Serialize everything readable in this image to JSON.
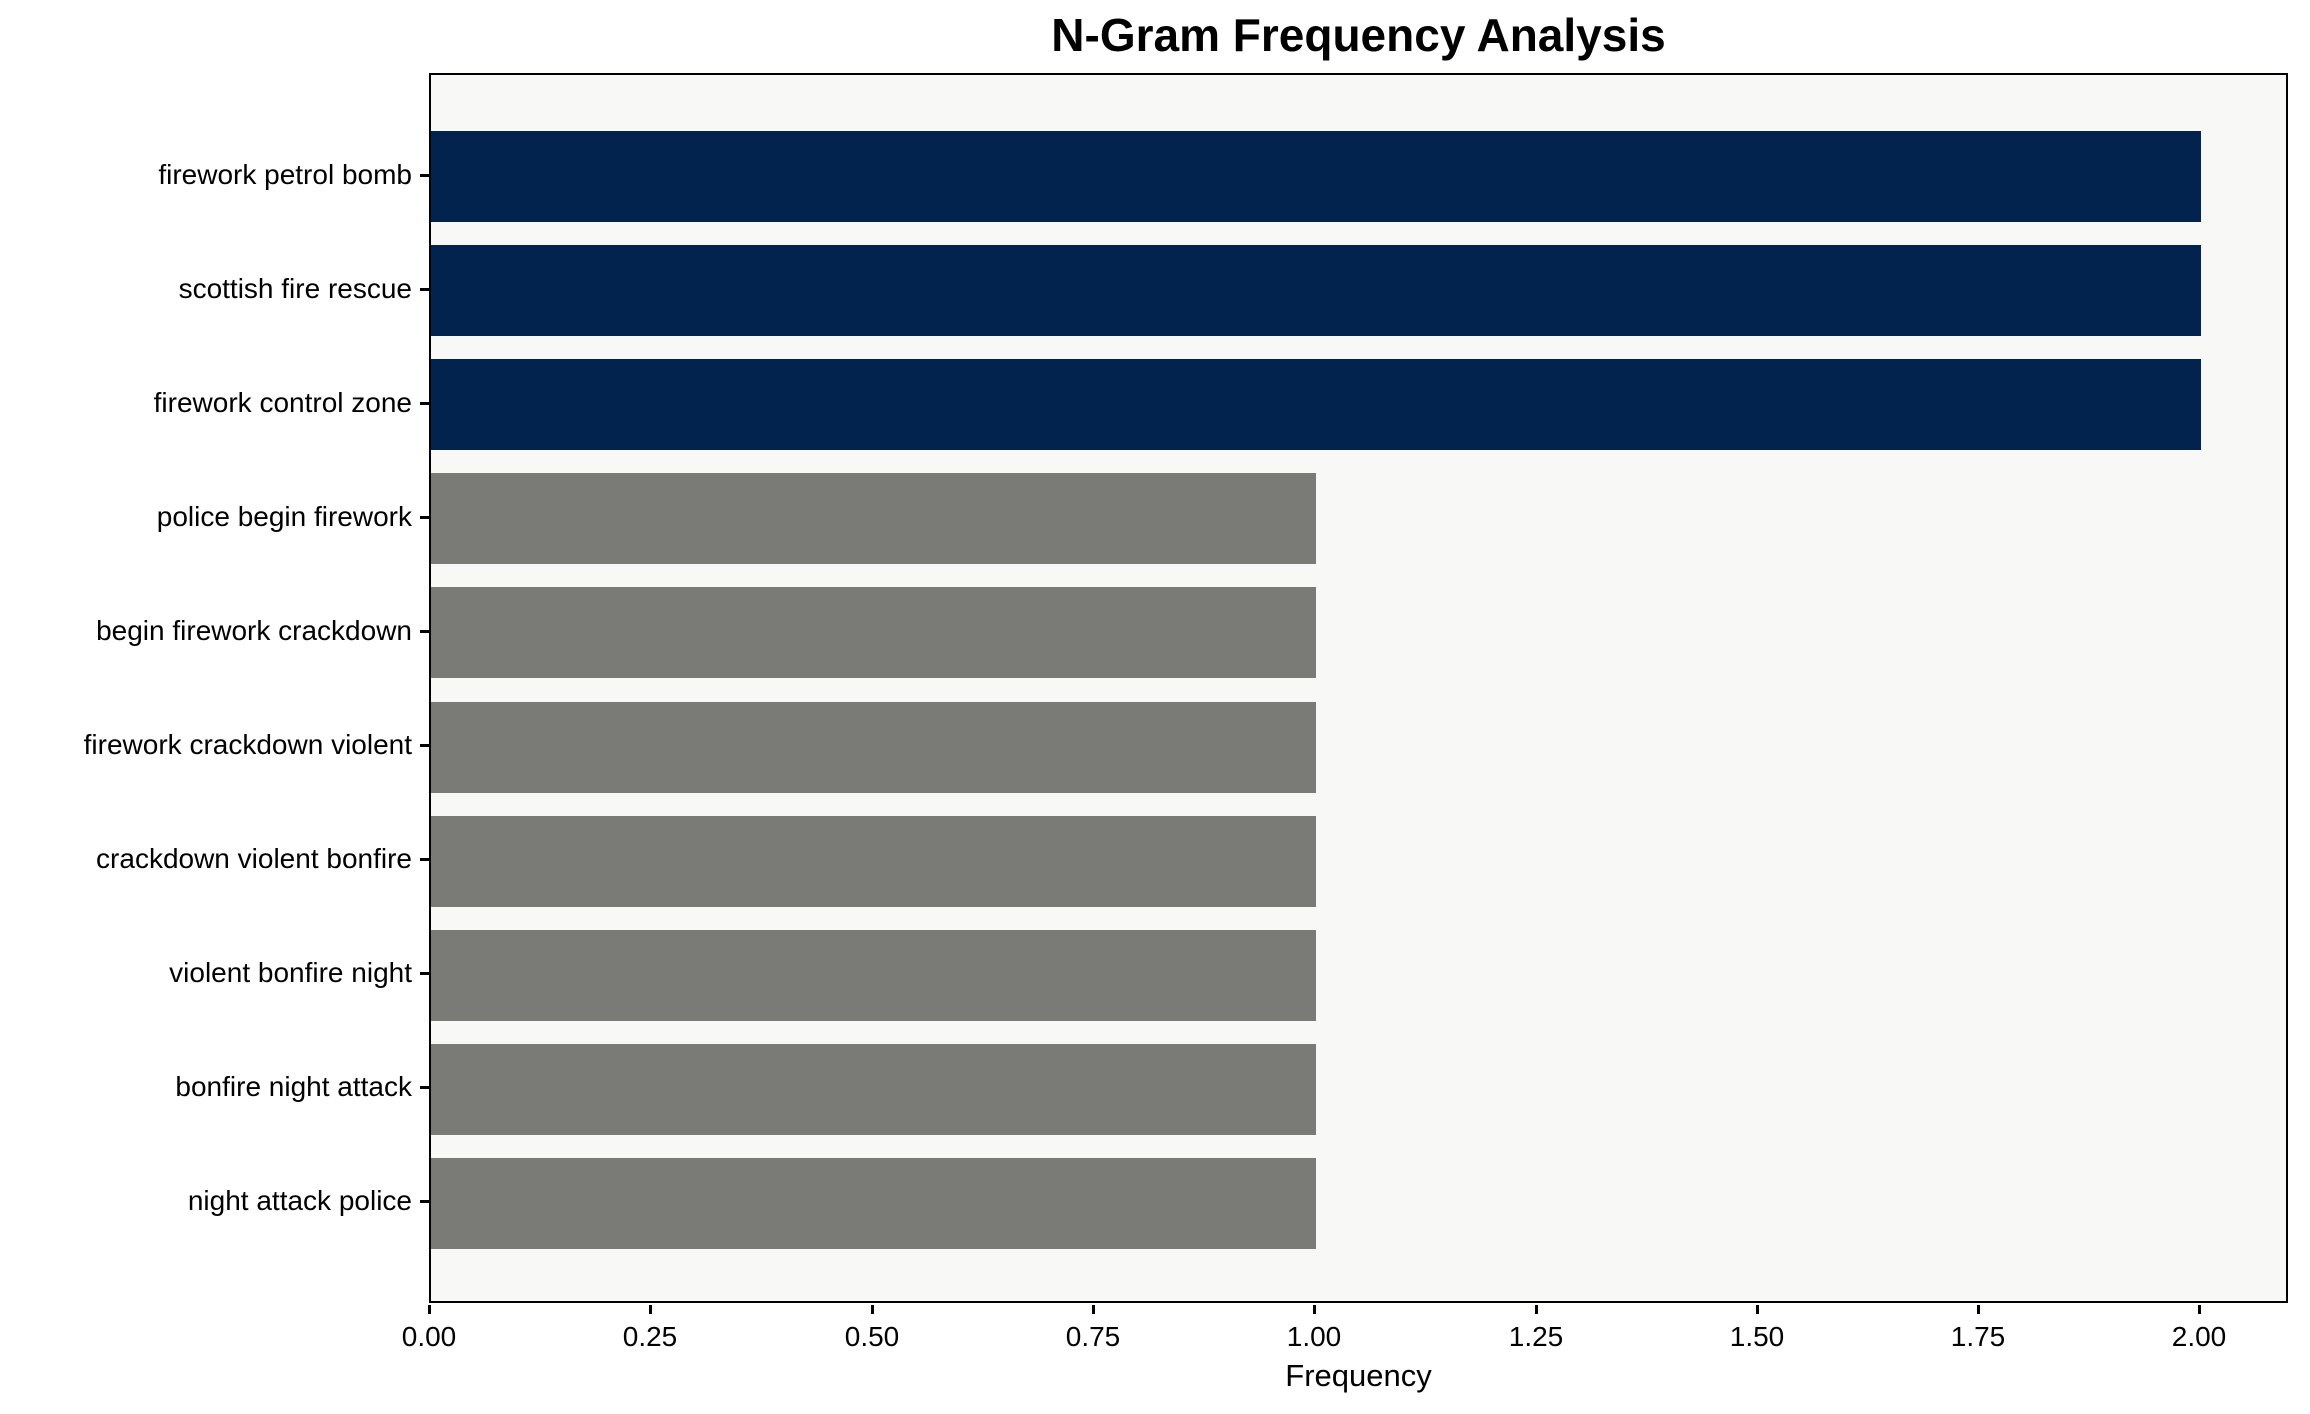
{
  "chart_data": {
    "type": "bar",
    "orientation": "horizontal",
    "title": "N-Gram Frequency Analysis",
    "xlabel": "Frequency",
    "ylabel": "",
    "categories": [
      "firework petrol bomb",
      "scottish fire rescue",
      "firework control zone",
      "police begin firework",
      "begin firework crackdown",
      "firework crackdown violent",
      "crackdown violent bonfire",
      "violent bonfire night",
      "bonfire night attack",
      "night attack police"
    ],
    "values": [
      2,
      2,
      2,
      1,
      1,
      1,
      1,
      1,
      1,
      1
    ],
    "xlim": [
      0,
      2.1
    ],
    "xtick_values": [
      0,
      0.25,
      0.5,
      0.75,
      1.0,
      1.25,
      1.5,
      1.75,
      2.0
    ],
    "xtick_labels": [
      "0.00",
      "0.25",
      "0.50",
      "0.75",
      "1.00",
      "1.25",
      "1.50",
      "1.75",
      "2.00"
    ],
    "grid": false,
    "legend_position": "none",
    "colors": {
      "highlight_bar": "#03234F",
      "default_bar": "#7A7A77",
      "plot_background": "#F8F8F7",
      "figure_background": "#FFFFFF",
      "spine": "#000000",
      "text": "#000000"
    },
    "bar_colors": [
      "#03234F",
      "#03234F",
      "#03234F",
      "#7A7A77",
      "#7A7A77",
      "#7A7A77",
      "#7A7A77",
      "#7A7A77",
      "#7A7A77",
      "#7A7A77"
    ]
  }
}
